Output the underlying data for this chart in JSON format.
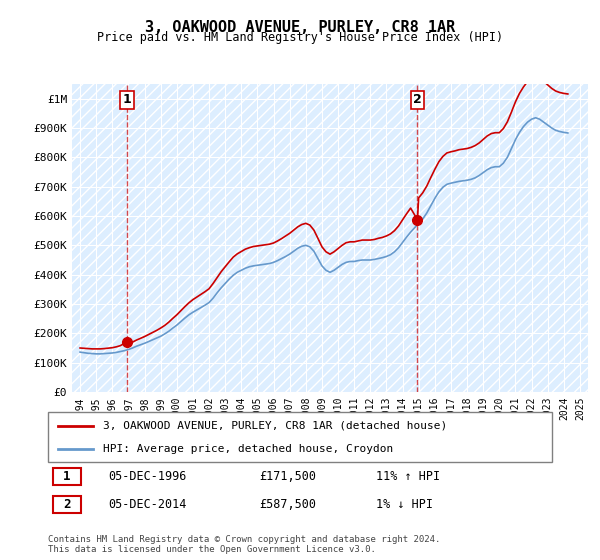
{
  "title": "3, OAKWOOD AVENUE, PURLEY, CR8 1AR",
  "subtitle": "Price paid vs. HM Land Registry's House Price Index (HPI)",
  "legend_line1": "3, OAKWOOD AVENUE, PURLEY, CR8 1AR (detached house)",
  "legend_line2": "HPI: Average price, detached house, Croydon",
  "footer": "Contains HM Land Registry data © Crown copyright and database right 2024.\nThis data is licensed under the Open Government Licence v3.0.",
  "annotation1_label": "1",
  "annotation1_date": "05-DEC-1996",
  "annotation1_price": "£171,500",
  "annotation1_hpi": "11% ↑ HPI",
  "annotation2_label": "2",
  "annotation2_date": "05-DEC-2014",
  "annotation2_price": "£587,500",
  "annotation2_hpi": "1% ↓ HPI",
  "red_color": "#cc0000",
  "blue_color": "#6699cc",
  "background_hatch_color": "#ddeeff",
  "sale1_year": 1996.92,
  "sale1_price": 171500,
  "sale2_year": 2014.92,
  "sale2_price": 587500,
  "ylim_max": 1050000,
  "yticks": [
    0,
    100000,
    200000,
    300000,
    400000,
    500000,
    600000,
    700000,
    800000,
    900000,
    1000000
  ],
  "ytick_labels": [
    "£0",
    "£100K",
    "£200K",
    "£300K",
    "£400K",
    "£500K",
    "£600K",
    "£700K",
    "£800K",
    "£900K",
    "£1M"
  ],
  "xlim_min": 1993.5,
  "xlim_max": 2025.5,
  "xticks": [
    1994,
    1995,
    1996,
    1997,
    1998,
    1999,
    2000,
    2001,
    2002,
    2003,
    2004,
    2005,
    2006,
    2007,
    2008,
    2009,
    2010,
    2011,
    2012,
    2013,
    2014,
    2015,
    2016,
    2017,
    2018,
    2019,
    2020,
    2021,
    2022,
    2023,
    2024,
    2025
  ],
  "hpi_years": [
    1994.0,
    1994.25,
    1994.5,
    1994.75,
    1995.0,
    1995.25,
    1995.5,
    1995.75,
    1996.0,
    1996.25,
    1996.5,
    1996.75,
    1997.0,
    1997.25,
    1997.5,
    1997.75,
    1998.0,
    1998.25,
    1998.5,
    1998.75,
    1999.0,
    1999.25,
    1999.5,
    1999.75,
    2000.0,
    2000.25,
    2000.5,
    2000.75,
    2001.0,
    2001.25,
    2001.5,
    2001.75,
    2002.0,
    2002.25,
    2002.5,
    2002.75,
    2003.0,
    2003.25,
    2003.5,
    2003.75,
    2004.0,
    2004.25,
    2004.5,
    2004.75,
    2005.0,
    2005.25,
    2005.5,
    2005.75,
    2006.0,
    2006.25,
    2006.5,
    2006.75,
    2007.0,
    2007.25,
    2007.5,
    2007.75,
    2008.0,
    2008.25,
    2008.5,
    2008.75,
    2009.0,
    2009.25,
    2009.5,
    2009.75,
    2010.0,
    2010.25,
    2010.5,
    2010.75,
    2011.0,
    2011.25,
    2011.5,
    2011.75,
    2012.0,
    2012.25,
    2012.5,
    2012.75,
    2013.0,
    2013.25,
    2013.5,
    2013.75,
    2014.0,
    2014.25,
    2014.5,
    2014.75,
    2015.0,
    2015.25,
    2015.5,
    2015.75,
    2016.0,
    2016.25,
    2016.5,
    2016.75,
    2017.0,
    2017.25,
    2017.5,
    2017.75,
    2018.0,
    2018.25,
    2018.5,
    2018.75,
    2019.0,
    2019.25,
    2019.5,
    2019.75,
    2020.0,
    2020.25,
    2020.5,
    2020.75,
    2021.0,
    2021.25,
    2021.5,
    2021.75,
    2022.0,
    2022.25,
    2022.5,
    2022.75,
    2023.0,
    2023.25,
    2023.5,
    2023.75,
    2024.0,
    2024.25
  ],
  "hpi_prices": [
    136000,
    134000,
    132000,
    131000,
    130000,
    130000,
    131000,
    132000,
    133000,
    135000,
    138000,
    141000,
    145000,
    150000,
    156000,
    161000,
    166000,
    172000,
    178000,
    184000,
    190000,
    198000,
    207000,
    218000,
    228000,
    240000,
    252000,
    263000,
    272000,
    280000,
    288000,
    296000,
    305000,
    320000,
    338000,
    355000,
    370000,
    385000,
    398000,
    408000,
    415000,
    422000,
    427000,
    430000,
    432000,
    434000,
    436000,
    438000,
    442000,
    448000,
    455000,
    462000,
    470000,
    480000,
    490000,
    497000,
    500000,
    495000,
    480000,
    455000,
    430000,
    415000,
    408000,
    415000,
    425000,
    435000,
    442000,
    445000,
    445000,
    448000,
    450000,
    450000,
    450000,
    452000,
    455000,
    458000,
    462000,
    468000,
    478000,
    492000,
    510000,
    528000,
    545000,
    560000,
    575000,
    590000,
    610000,
    635000,
    660000,
    682000,
    698000,
    708000,
    712000,
    715000,
    718000,
    720000,
    722000,
    725000,
    730000,
    738000,
    748000,
    758000,
    765000,
    768000,
    768000,
    780000,
    800000,
    830000,
    860000,
    885000,
    905000,
    920000,
    930000,
    935000,
    930000,
    920000,
    910000,
    900000,
    892000,
    888000,
    885000,
    883000
  ],
  "red_line_years": [
    1994.0,
    1994.25,
    1994.5,
    1994.75,
    1995.0,
    1995.25,
    1995.5,
    1995.75,
    1996.0,
    1996.25,
    1996.5,
    1996.92,
    1997.0,
    1997.25,
    1997.5,
    1997.75,
    1998.0,
    1998.25,
    1998.5,
    1998.75,
    1999.0,
    1999.25,
    1999.5,
    1999.75,
    2000.0,
    2000.25,
    2000.5,
    2000.75,
    2001.0,
    2001.25,
    2001.5,
    2001.75,
    2002.0,
    2002.25,
    2002.5,
    2002.75,
    2003.0,
    2003.25,
    2003.5,
    2003.75,
    2004.0,
    2004.25,
    2004.5,
    2004.75,
    2005.0,
    2005.25,
    2005.5,
    2005.75,
    2006.0,
    2006.25,
    2006.5,
    2006.75,
    2007.0,
    2007.25,
    2007.5,
    2007.75,
    2008.0,
    2008.25,
    2008.5,
    2008.75,
    2009.0,
    2009.25,
    2009.5,
    2009.75,
    2010.0,
    2010.25,
    2010.5,
    2010.75,
    2011.0,
    2011.25,
    2011.5,
    2011.75,
    2012.0,
    2012.25,
    2012.5,
    2012.75,
    2013.0,
    2013.25,
    2013.5,
    2013.75,
    2014.0,
    2014.25,
    2014.5,
    2014.92,
    2015.0,
    2015.25,
    2015.5,
    2015.75,
    2016.0,
    2016.25,
    2016.5,
    2016.75,
    2017.0,
    2017.25,
    2017.5,
    2017.75,
    2018.0,
    2018.25,
    2018.5,
    2018.75,
    2019.0,
    2019.25,
    2019.5,
    2019.75,
    2020.0,
    2020.25,
    2020.5,
    2020.75,
    2021.0,
    2021.25,
    2021.5,
    2021.75,
    2022.0,
    2022.25,
    2022.5,
    2022.75,
    2023.0,
    2023.25,
    2023.5,
    2023.75,
    2024.0,
    2024.25
  ],
  "red_line_prices": [
    150000,
    149000,
    148000,
    147000,
    147000,
    147000,
    148000,
    149500,
    151000,
    154000,
    158000,
    171500,
    164000,
    170000,
    177000,
    183000,
    189000,
    196000,
    203000,
    210000,
    218000,
    227000,
    238000,
    251000,
    263000,
    277000,
    291000,
    304000,
    315000,
    324000,
    333000,
    342000,
    352000,
    370000,
    390000,
    410000,
    427000,
    444000,
    460000,
    471000,
    479000,
    487000,
    492000,
    496000,
    498000,
    500000,
    502000,
    504000,
    508000,
    515000,
    523000,
    532000,
    541000,
    552000,
    563000,
    571000,
    575000,
    569000,
    552000,
    524000,
    495000,
    478000,
    470000,
    478000,
    489000,
    500000,
    509000,
    512000,
    512000,
    515000,
    518000,
    518000,
    518000,
    520000,
    524000,
    527000,
    532000,
    539000,
    550000,
    566000,
    587000,
    607500,
    627000,
    587500,
    662000,
    679000,
    702000,
    731000,
    759000,
    785000,
    803000,
    815000,
    819000,
    822000,
    826000,
    828000,
    830000,
    834000,
    840000,
    849000,
    861000,
    873000,
    881000,
    884000,
    884000,
    898000,
    921000,
    954000,
    989000,
    1018000,
    1040000,
    1058000,
    1070000,
    1075000,
    1070000,
    1059000,
    1047000,
    1035000,
    1026000,
    1021000,
    1018000,
    1016000
  ]
}
